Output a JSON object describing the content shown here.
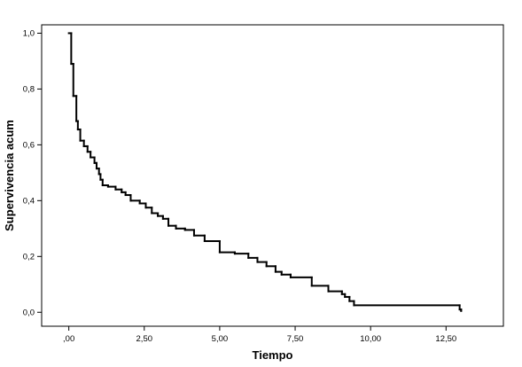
{
  "chart_data": {
    "type": "line",
    "subtype": "step",
    "title": "",
    "xlabel": "Tiempo",
    "ylabel": "Supervivencia acum",
    "xlim": [
      -0.9,
      14.4
    ],
    "ylim": [
      -0.05,
      1.03
    ],
    "xticks": [
      0,
      2.5,
      5,
      7.5,
      10,
      12.5
    ],
    "xtick_labels": [
      ",00",
      "2,50",
      "5,00",
      "7,50",
      "10,00",
      "12,50"
    ],
    "yticks": [
      0,
      0.2,
      0.4,
      0.6,
      0.8,
      1.0
    ],
    "ytick_labels": [
      "0,0",
      "0,2",
      "0,4",
      "0,6",
      "0,8",
      "1,0"
    ],
    "grid": false,
    "legend": "none",
    "colors": {
      "line": "#000000",
      "frame": "#000000",
      "background": "#ffffff"
    },
    "series": [
      {
        "x": [
          0.0,
          0.08,
          0.15,
          0.25,
          0.3,
          0.38,
          0.5,
          0.62,
          0.72,
          0.85,
          0.92,
          1.0,
          1.05,
          1.12,
          1.3,
          1.55,
          1.75,
          1.88,
          2.05,
          2.35,
          2.55,
          2.75,
          2.95,
          3.12,
          3.3,
          3.55,
          3.85,
          4.15,
          4.5,
          5.0,
          5.5,
          5.95,
          6.25,
          6.55,
          6.85,
          7.05,
          7.35,
          8.05,
          8.6,
          9.05,
          9.15,
          9.3,
          9.45,
          12.95,
          13.0
        ],
        "y": [
          1.0,
          0.89,
          0.775,
          0.685,
          0.655,
          0.615,
          0.595,
          0.575,
          0.555,
          0.535,
          0.515,
          0.495,
          0.475,
          0.455,
          0.45,
          0.44,
          0.43,
          0.42,
          0.4,
          0.39,
          0.375,
          0.355,
          0.345,
          0.335,
          0.31,
          0.3,
          0.295,
          0.275,
          0.255,
          0.215,
          0.21,
          0.195,
          0.18,
          0.165,
          0.145,
          0.135,
          0.125,
          0.095,
          0.075,
          0.065,
          0.055,
          0.04,
          0.025,
          0.01,
          0.005
        ]
      }
    ]
  }
}
